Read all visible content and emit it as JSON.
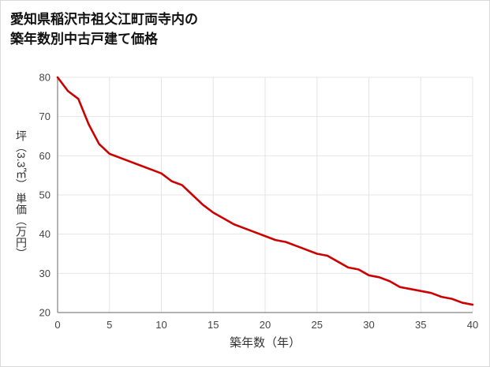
{
  "title": {
    "line1": "愛知県稲沢市祖父江町両寺内の",
    "line2": "築年数別中古戸建て価格"
  },
  "chart_data": {
    "type": "line",
    "title": "愛知県稲沢市祖父江町両寺内の築年数別中古戸建て価格",
    "xlabel": "築年数（年）",
    "ylabel": "坪（3.3㎡） 単価（万円）",
    "xlim": [
      0,
      40
    ],
    "ylim": [
      20,
      80
    ],
    "xticks": [
      0,
      5,
      10,
      15,
      20,
      25,
      30,
      35,
      40
    ],
    "yticks": [
      20,
      30,
      40,
      50,
      60,
      70,
      80
    ],
    "grid": true,
    "legend": "none",
    "line_color": "#cc0000",
    "x": [
      0,
      1,
      2,
      3,
      4,
      5,
      6,
      7,
      8,
      9,
      10,
      11,
      12,
      13,
      14,
      15,
      16,
      17,
      18,
      19,
      20,
      21,
      22,
      23,
      24,
      25,
      26,
      27,
      28,
      29,
      30,
      31,
      32,
      33,
      34,
      35,
      36,
      37,
      38,
      39,
      40
    ],
    "values": [
      80,
      76.5,
      74.5,
      68,
      63,
      60.5,
      59.5,
      58.5,
      57.5,
      56.5,
      55.5,
      53.5,
      52.5,
      50,
      47.5,
      45.5,
      44,
      42.5,
      41.5,
      40.5,
      39.5,
      38.5,
      38,
      37,
      36,
      35,
      34.5,
      33,
      31.5,
      31,
      29.5,
      29,
      28,
      26.5,
      26,
      25.5,
      25,
      24,
      23.5,
      22.5,
      22
    ]
  },
  "colors": {
    "line": "#cc0000",
    "grid": "#e5e5e5",
    "axis": "#999999",
    "tick_label": "#444444",
    "title_text": "#111111",
    "axis_label_text": "#333333"
  }
}
